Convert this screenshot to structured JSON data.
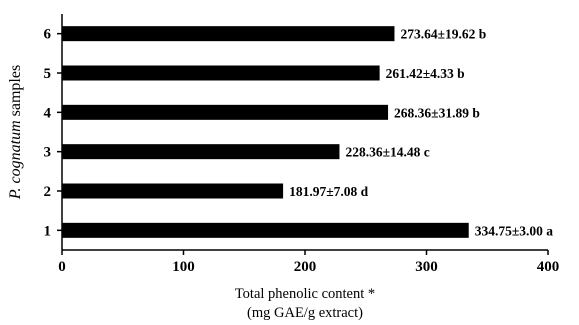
{
  "chart_data": {
    "type": "bar",
    "orientation": "horizontal",
    "categories": [
      "1",
      "2",
      "3",
      "4",
      "5",
      "6"
    ],
    "values": [
      334.75,
      181.97,
      228.36,
      268.36,
      261.42,
      273.64
    ],
    "data_labels": [
      "334.75±3.00 a",
      "181.97±7.08 d",
      "228.36±14.48 c",
      "268.36±31.89 b",
      "261.42±4.33 b",
      "273.64±19.62 b"
    ],
    "title": "",
    "xlabel_line1": "Total phenolic content *",
    "xlabel_line2": "(mg GAE/g extract)",
    "ylabel_italic": "P. cognatum",
    "ylabel_rest": " samples",
    "xlim": [
      0,
      400
    ],
    "xticks": [
      0,
      100,
      200,
      300,
      400
    ],
    "grid": false,
    "legend": "none",
    "bar_color": "#000000"
  }
}
